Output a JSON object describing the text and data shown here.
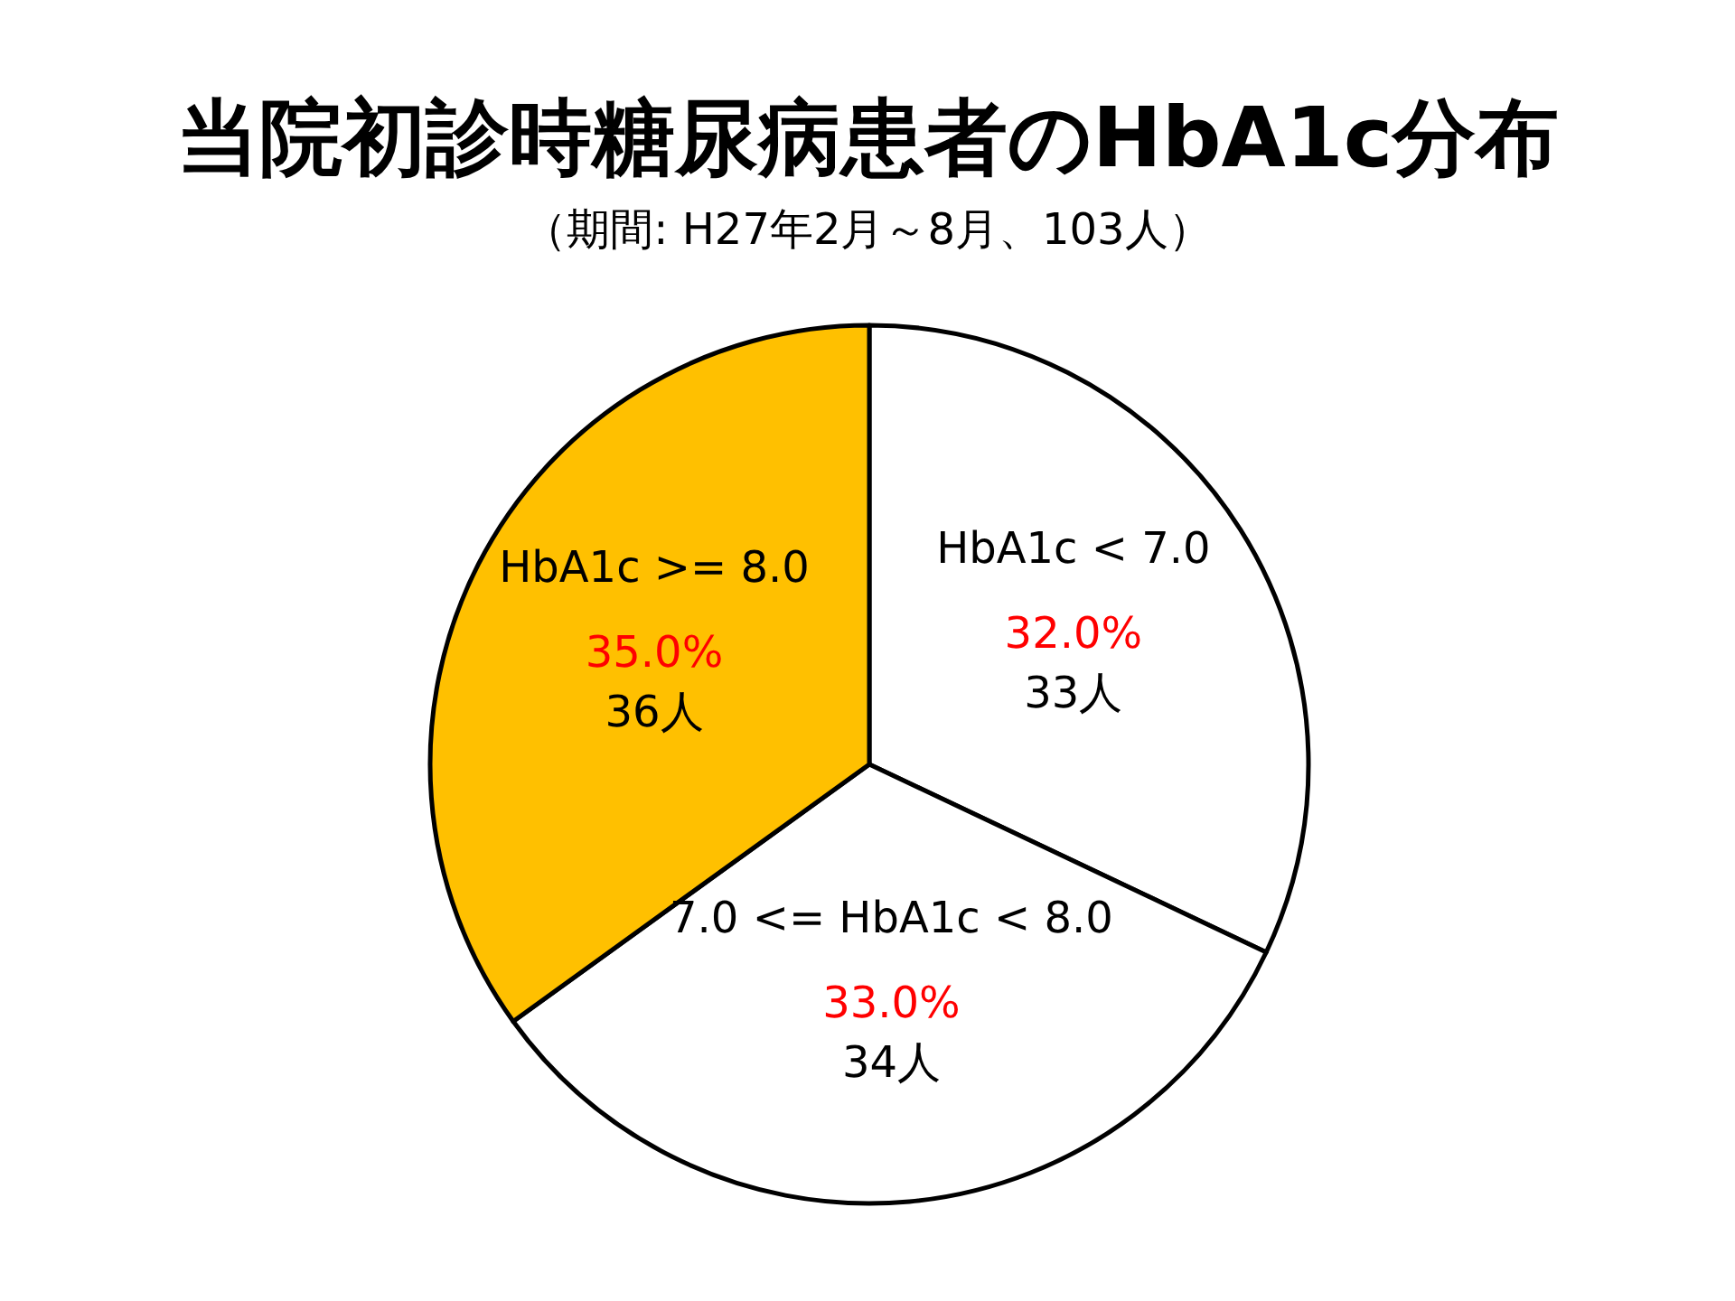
{
  "chart_data": {
    "type": "pie",
    "title": "当院初診時糖尿病患者のHbA1c分布",
    "subtitle": "（期間: H27年2月～8月、103人）",
    "categories": [
      "HbA1c < 7.0",
      "7.0 <= HbA1c < 8.0",
      "HbA1c >= 8.0"
    ],
    "values": [
      33,
      34,
      36
    ],
    "colors": [
      "#ffffff",
      "#ffffff",
      "#ffc000"
    ],
    "value_labels": [
      "33人",
      "34人",
      "36人"
    ],
    "annotations": [
      {
        "text": "32.0%",
        "x": "HbA1c < 7.0"
      },
      {
        "text": "33.0%",
        "x": "7.0 <= HbA1c < 8.0"
      },
      {
        "text": "35.0%",
        "x": "HbA1c >= 8.0"
      }
    ]
  }
}
